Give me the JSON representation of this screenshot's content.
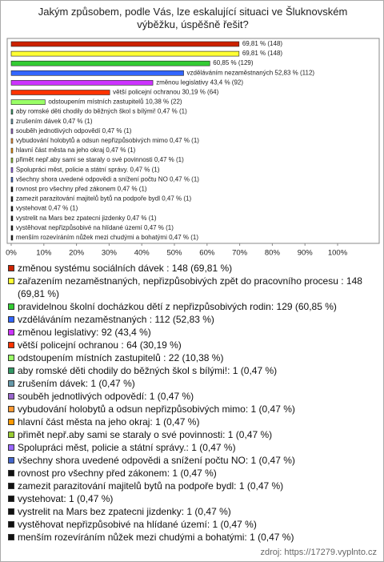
{
  "chart_data": {
    "type": "hbar",
    "title": "Jakým způsobem, podle Vás, lze eskalující situaci ve Šluknovském výběžku, úspěšně řešit?",
    "categories": [
      null,
      null,
      null,
      "vzděláváním nezaměstnaných",
      "změnou legislativy",
      "větší policejní ochranou",
      "odstoupením místních zastupitelů",
      "aby romské děti chodily do běžných škol s bílými!",
      "zrušením dávek",
      "souběh jednotlivých odpovědí",
      "vybudování holobytů a odsun nepřizpůsobivých mimo",
      "hlavní část města na jeho okraj",
      "přimět nepř.aby sami se staraly o své povinnosti",
      "Spolupráci měst, policie a státní správy.",
      "všechny shora uvedené odpovědi a snížení počtu NO",
      "rovnost pro všechny před zákonem",
      "zamezit parazitování majitelů bytů na podpoře bydl",
      "vystehovat",
      "vystrelit na Mars bez zpatecni jizdenky",
      "vystěhovat nepřizpůsobivé na hlídané území",
      "menším rozevíráním nůžek mezi chudými a bohatými"
    ],
    "values": [
      69.81,
      69.81,
      60.85,
      52.83,
      43.4,
      30.19,
      10.38,
      0.47,
      0.47,
      0.47,
      0.47,
      0.47,
      0.47,
      0.47,
      0.47,
      0.47,
      0.47,
      0.47,
      0.47,
      0.47,
      0.47
    ],
    "value_labels": [
      "69,81 % (148)",
      "69,81 % (148)",
      "60,85 % (129)",
      "52,83 % (112)",
      "43,4 % (92)",
      "30,19 % (64)",
      "10,38 % (22)",
      "0,47 % (1)",
      "0,47 % (1)",
      "0,47 % (1)",
      "0,47 % (1)",
      "0,47 % (1)",
      "0,47 % (1)",
      "0,47 % (1)",
      "0,47 % (1)",
      "0,47 % (1)",
      "0,47 % (1)",
      "0,47 % (1)",
      "0,47 % (1)",
      "0,47 % (1)",
      "0,47 % (1)"
    ],
    "colors": [
      "#cc2200",
      "#ffff33",
      "#33cc33",
      "#3366ff",
      "#cc33ff",
      "#ff3300",
      "#99ff66",
      "#339966",
      "#6699aa",
      "#9966cc",
      "#ff9933",
      "#ff9900",
      "#99cc33",
      "#9966ff",
      "#4466cc",
      "#111111",
      "#111111",
      "#111111",
      "#111111",
      "#111111",
      "#111111"
    ],
    "legend": [
      "změnou systému sociálních dávek  : 148 (69,81 %)",
      "zařazením nezaměstnaných, nepřizpůsobivých zpět do pracovního procesu : 148 (69,81 %)",
      "pravidelnou školní docházkou dětí z nepřizpůsobivých rodin: 129 (60,85 %)",
      "vzděláváním nezaměstnaných : 112 (52,83 %)",
      "změnou legislativy: 92 (43,4 %)",
      "větší policejní ochranou : 64 (30,19 %)",
      "odstoupením místních zastupitelů : 22 (10,38 %)",
      "aby romské děti chodily do běžných škol s bílými!: 1 (0,47 %)",
      "zrušením dávek: 1 (0,47 %)",
      "souběh jednotlivých odpovědí: 1 (0,47 %)",
      "vybudování holobytů a odsun nepřizpůsobivých mimo: 1 (0,47 %)",
      "hlavní část města na jeho okraj: 1 (0,47 %)",
      "přimět nepř.aby sami se staraly o své povinnosti: 1 (0,47 %)",
      "Spolupráci měst, policie a státní správy.: 1 (0,47 %)",
      "všechny shora uvedené odpovědi a snížení počtu NO: 1 (0,47 %)",
      "rovnost pro všechny před zákonem: 1 (0,47 %)",
      "zamezit parazitování majitelů bytů na podpoře bydl: 1 (0,47 %)",
      "vystehovat: 1 (0,47 %)",
      "vystrelit na Mars bez zpatecni jizdenky: 1 (0,47 %)",
      "vystěhovat nepřizpůsobivé na hlídané území: 1 (0,47 %)",
      "menším rozevíráním nůžek mezi chudými a bohatými: 1 (0,47 %)"
    ],
    "xlim": [
      0,
      100
    ],
    "xticks": [
      {
        "value": 0,
        "label": "0%"
      },
      {
        "value": 10,
        "label": "10%"
      },
      {
        "value": 20,
        "label": "20%"
      },
      {
        "value": 30,
        "label": "30%"
      },
      {
        "value": 40,
        "label": "40%"
      },
      {
        "value": 50,
        "label": "50%"
      },
      {
        "value": 60,
        "label": "60%"
      },
      {
        "value": 70,
        "label": "70%"
      },
      {
        "value": 80,
        "label": "80%"
      },
      {
        "value": 90,
        "label": "90%"
      },
      {
        "value": 100,
        "label": "100%"
      }
    ],
    "source": "zdroj: https://17279.vyplnto.cz"
  }
}
